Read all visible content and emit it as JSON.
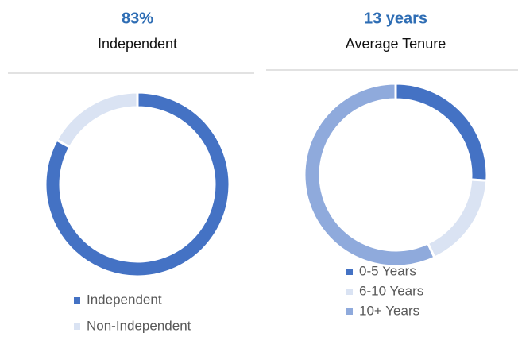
{
  "chart_data": [
    {
      "type": "pie",
      "title": "83%",
      "subtitle": "Independent",
      "donut": true,
      "categories": [
        "Independent",
        "Non-Independent"
      ],
      "values": [
        83,
        17
      ],
      "colors": [
        "#4472c4",
        "#dae3f3"
      ]
    },
    {
      "type": "pie",
      "title": "13 years",
      "subtitle": "Average Tenure",
      "donut": true,
      "categories": [
        "0-5 Years",
        "6-10 Years",
        "10+ Years"
      ],
      "values": [
        26,
        17,
        57
      ],
      "colors": [
        "#4472c4",
        "#dae3f3",
        "#8faadc"
      ]
    }
  ]
}
